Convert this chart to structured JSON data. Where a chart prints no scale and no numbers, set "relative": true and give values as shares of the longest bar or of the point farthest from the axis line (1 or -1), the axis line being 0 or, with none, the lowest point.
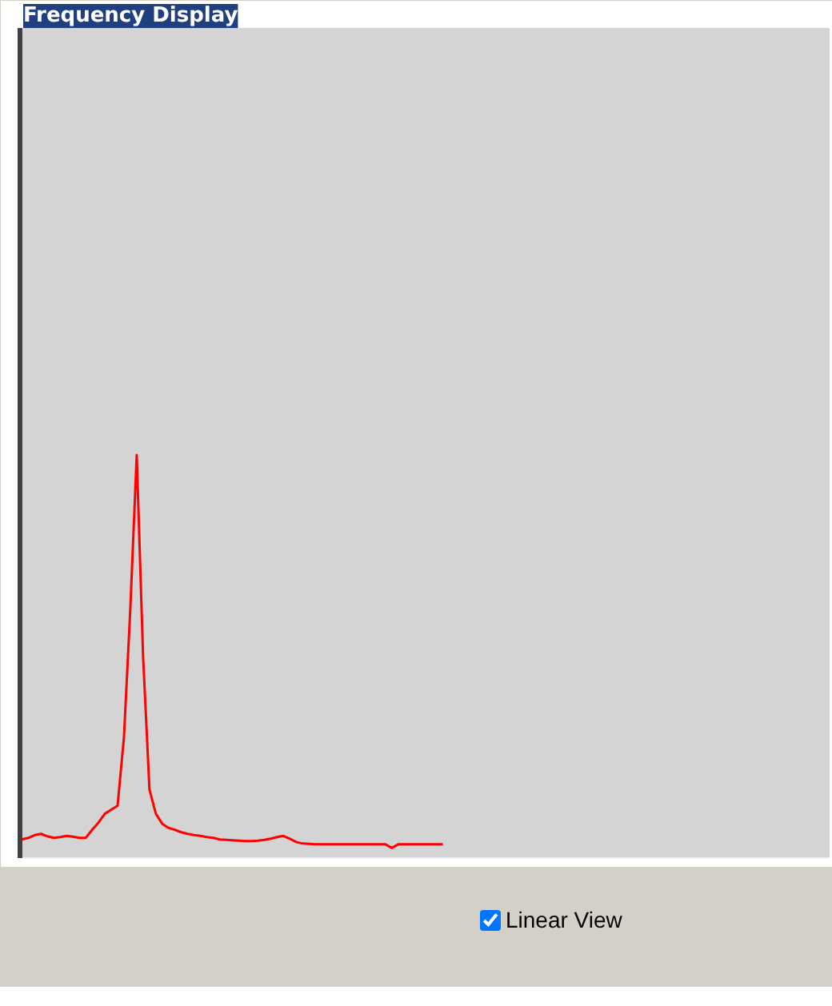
{
  "chart_data": {
    "type": "line",
    "title": "Frequency Display",
    "relative": true,
    "color": "#ff0000",
    "grid": false,
    "marker": "none",
    "line_style": "solid",
    "categories": [
      null,
      null,
      null,
      null,
      null,
      null,
      null,
      null,
      null,
      null,
      null,
      null,
      null,
      null,
      null,
      null,
      null,
      null,
      null,
      null,
      null,
      null,
      null,
      null,
      null,
      null,
      null,
      null,
      null,
      null,
      null,
      null,
      null,
      null,
      null,
      null,
      null,
      null,
      null,
      null,
      null,
      null,
      null,
      null,
      null,
      null,
      null,
      null,
      null,
      null,
      null,
      null,
      null,
      null,
      null,
      null,
      null,
      null,
      null,
      null,
      null,
      null,
      null,
      null,
      null,
      null,
      null
    ],
    "values": [
      0.046,
      0.05,
      0.057,
      0.06,
      0.054,
      0.05,
      0.052,
      0.055,
      0.053,
      0.05,
      0.05,
      0.07,
      0.088,
      0.11,
      0.12,
      0.13,
      0.3,
      0.62,
      1,
      0.5,
      0.17,
      0.11,
      0.085,
      0.075,
      0.07,
      0.064,
      0.06,
      0.057,
      0.055,
      0.052,
      0.05,
      0.046,
      0.045,
      0.044,
      0.043,
      0.042,
      0.042,
      0.043,
      0.045,
      0.048,
      0.052,
      0.055,
      0.048,
      0.04,
      0.036,
      0.035,
      0.034,
      0.034,
      0.034,
      0.034,
      0.034,
      0.034,
      0.034,
      0.034,
      0.034,
      0.034,
      0.034,
      0.034,
      0.025,
      0.034,
      0.034,
      0.034,
      0.034,
      0.034,
      0.034,
      0.034,
      0.034
    ],
    "annotations": [
      "Linear View"
    ]
  }
}
